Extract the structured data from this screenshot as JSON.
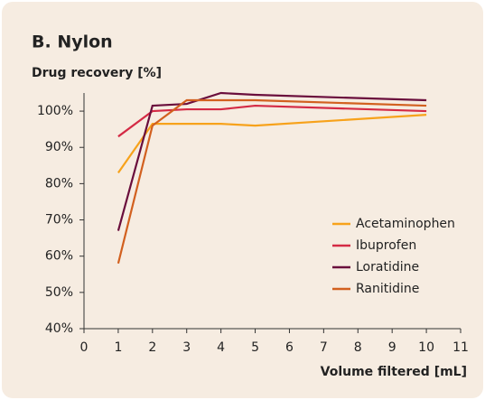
{
  "chart_data": {
    "type": "line",
    "title": "B. Nylon",
    "y_label": "Drug recovery [%]",
    "x_label": "Volume filtered [mL]",
    "x": [
      1,
      2,
      3,
      4,
      5,
      10
    ],
    "series": [
      {
        "name": "Acetaminophen",
        "color": "#f7a21b",
        "values": [
          83,
          96.5,
          96.5,
          96.5,
          96,
          99
        ]
      },
      {
        "name": "Ibuprofen",
        "color": "#d42a45",
        "values": [
          93,
          100,
          100.5,
          100.5,
          101.5,
          100
        ]
      },
      {
        "name": "Loratidine",
        "color": "#6a0e3c",
        "values": [
          67,
          101.5,
          102,
          105,
          104.5,
          103
        ]
      },
      {
        "name": "Ranitidine",
        "color": "#d2601f",
        "values": [
          58,
          96,
          103,
          103,
          103,
          101.5
        ]
      }
    ],
    "xlim": [
      0,
      11
    ],
    "xticks": [
      0,
      1,
      2,
      3,
      4,
      5,
      6,
      7,
      8,
      9,
      10,
      11
    ],
    "ylim": [
      40,
      105
    ],
    "yticks": [
      {
        "value": 40,
        "label": "40%"
      },
      {
        "value": 50,
        "label": "50%"
      },
      {
        "value": 60,
        "label": "60%"
      },
      {
        "value": 70,
        "label": "70%"
      },
      {
        "value": 80,
        "label": "80%"
      },
      {
        "value": 90,
        "label": "90%"
      },
      {
        "value": 100,
        "label": "100%"
      }
    ],
    "legend": "right",
    "grid": false
  }
}
